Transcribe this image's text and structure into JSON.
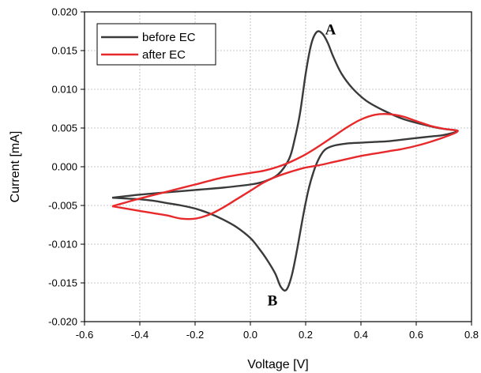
{
  "chart_data": {
    "type": "line",
    "xlabel": "Voltage [V]",
    "ylabel": "Current [mA]",
    "xlim": [
      -0.6,
      0.8
    ],
    "ylim": [
      -0.02,
      0.02
    ],
    "xticks": [
      "-0.6",
      "-0.4",
      "-0.2",
      "0.0",
      "0.2",
      "0.4",
      "0.6",
      "0.8"
    ],
    "yticks": [
      "-0.020",
      "-0.015",
      "-0.010",
      "-0.005",
      "0.000",
      "0.005",
      "0.010",
      "0.015",
      "0.020"
    ],
    "grid": true,
    "legend": "top-left",
    "annotations": [
      {
        "text": "A",
        "x": 0.29,
        "y": 0.0178
      },
      {
        "text": "B",
        "x": 0.08,
        "y": -0.0172
      }
    ],
    "series": [
      {
        "name": "before EC",
        "color": "#3a3a3a",
        "x": [
          -0.5,
          -0.45,
          -0.4,
          -0.3,
          -0.2,
          -0.1,
          0.0,
          0.05,
          0.1,
          0.14,
          0.16,
          0.18,
          0.2,
          0.22,
          0.24,
          0.26,
          0.28,
          0.3,
          0.33,
          0.37,
          0.42,
          0.48,
          0.55,
          0.62,
          0.68,
          0.72,
          0.75,
          0.7,
          0.65,
          0.6,
          0.55,
          0.5,
          0.45,
          0.4,
          0.35,
          0.3,
          0.27,
          0.25,
          0.23,
          0.21,
          0.19,
          0.17,
          0.15,
          0.13,
          0.11,
          0.09,
          0.06,
          0.03,
          0.0,
          -0.05,
          -0.1,
          -0.15,
          -0.2,
          -0.25,
          -0.3,
          -0.35,
          -0.4,
          -0.45,
          -0.5
        ],
        "y": [
          -0.004,
          -0.0038,
          -0.0036,
          -0.0033,
          -0.003,
          -0.0027,
          -0.0023,
          -0.0019,
          -0.001,
          0.001,
          0.0035,
          0.007,
          0.012,
          0.0158,
          0.0174,
          0.0172,
          0.016,
          0.0142,
          0.012,
          0.0101,
          0.0085,
          0.0073,
          0.0062,
          0.0055,
          0.005,
          0.0048,
          0.0046,
          0.0041,
          0.0039,
          0.0037,
          0.0035,
          0.0033,
          0.0032,
          0.0031,
          0.003,
          0.0027,
          0.0022,
          0.0012,
          -0.0005,
          -0.003,
          -0.0065,
          -0.0105,
          -0.014,
          -0.0159,
          -0.0155,
          -0.0138,
          -0.012,
          -0.0105,
          -0.0092,
          -0.0078,
          -0.0068,
          -0.006,
          -0.0054,
          -0.005,
          -0.0047,
          -0.0044,
          -0.0042,
          -0.0041,
          -0.004
        ]
      },
      {
        "name": "after EC",
        "color": "#e8292b",
        "x": [
          -0.5,
          -0.45,
          -0.4,
          -0.3,
          -0.2,
          -0.1,
          0.0,
          0.05,
          0.1,
          0.15,
          0.2,
          0.25,
          0.3,
          0.35,
          0.4,
          0.45,
          0.5,
          0.55,
          0.6,
          0.65,
          0.7,
          0.75,
          0.7,
          0.65,
          0.6,
          0.55,
          0.5,
          0.45,
          0.4,
          0.35,
          0.3,
          0.25,
          0.2,
          0.15,
          0.1,
          0.05,
          0.0,
          -0.05,
          -0.1,
          -0.15,
          -0.2,
          -0.25,
          -0.3,
          -0.35,
          -0.4,
          -0.45,
          -0.5
        ],
        "y": [
          -0.0051,
          -0.0046,
          -0.0041,
          -0.0032,
          -0.0023,
          -0.0014,
          -0.0008,
          -0.0005,
          0.0,
          0.0007,
          0.0016,
          0.0027,
          0.0039,
          0.0051,
          0.0061,
          0.0067,
          0.0068,
          0.0065,
          0.0059,
          0.0053,
          0.0049,
          0.0046,
          0.0038,
          0.0032,
          0.0027,
          0.0023,
          0.002,
          0.0017,
          0.0014,
          0.001,
          0.0006,
          0.0002,
          -0.0001,
          -0.0006,
          -0.0012,
          -0.002,
          -0.0031,
          -0.0042,
          -0.0053,
          -0.0062,
          -0.0067,
          -0.0067,
          -0.0063,
          -0.006,
          -0.0057,
          -0.0054,
          -0.0051
        ]
      }
    ]
  }
}
